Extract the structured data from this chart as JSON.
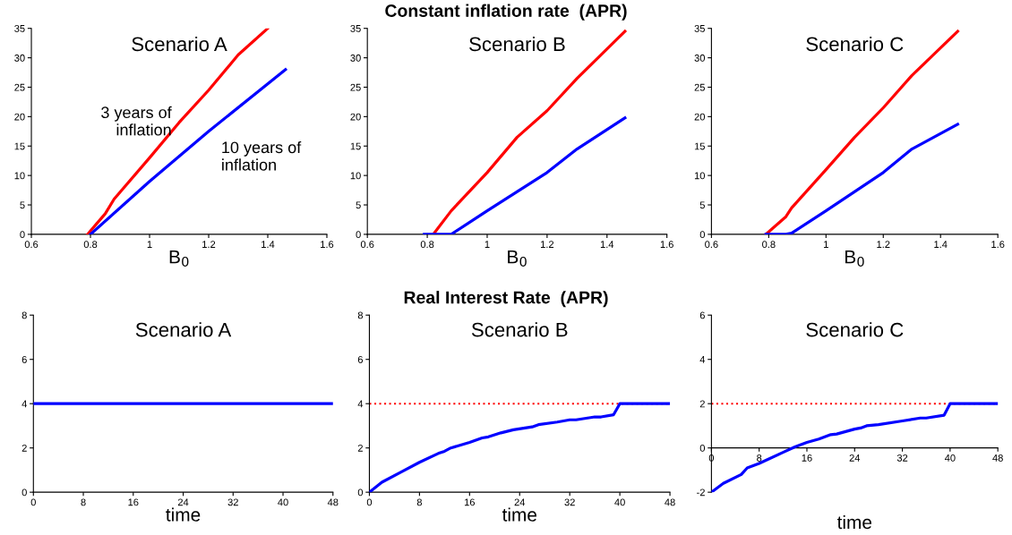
{
  "chart_data": [
    {
      "type": "line",
      "title": "Scenario A",
      "xlabel": "B$_{0}$",
      "annotations": [
        "Constant inflation rate  (APR)"
      ],
      "xlim": [
        0.6,
        1.6
      ],
      "xticks": [
        0.6,
        0.8,
        1,
        1.2,
        1.4,
        1.6
      ],
      "ylim": [
        0,
        35
      ],
      "yticks": [
        0,
        5,
        10,
        15,
        20,
        25,
        30,
        35
      ],
      "grid": false,
      "legend": false,
      "line_style": "solid",
      "series": [
        {
          "name": "3 years of\ninflation",
          "color": "#ff0000",
          "x": [
            0.79,
            0.85,
            0.88,
            1.0,
            1.1,
            1.2,
            1.3,
            1.4
          ],
          "values": [
            0,
            3.5,
            6,
            13,
            19,
            24.5,
            30.5,
            35
          ]
        },
        {
          "name": "10 years of\ninflation",
          "color": "#0000ff",
          "x": [
            0.8,
            1.0,
            1.2,
            1.46
          ],
          "values": [
            0,
            9,
            17.5,
            28
          ]
        }
      ]
    },
    {
      "type": "line",
      "title": "Scenario B",
      "xlabel": "B$_{0}$",
      "xlim": [
        0.6,
        1.6
      ],
      "xticks": [
        0.6,
        0.8,
        1,
        1.2,
        1.4,
        1.6
      ],
      "ylim": [
        0,
        35
      ],
      "yticks": [
        0,
        5,
        10,
        15,
        20,
        25,
        30,
        35
      ],
      "grid": false,
      "legend": false,
      "line_style": "solid",
      "series": [
        {
          "color": "#ff0000",
          "x": [
            0.82,
            0.88,
            1.0,
            1.1,
            1.2,
            1.3,
            1.46
          ],
          "values": [
            0,
            4,
            10.5,
            16.5,
            21,
            26.5,
            34.5
          ]
        },
        {
          "color": "#0000ff",
          "x": [
            0.79,
            0.88,
            1.0,
            1.2,
            1.3,
            1.46
          ],
          "values": [
            0,
            0,
            4,
            10.5,
            14.5,
            19.8
          ]
        }
      ]
    },
    {
      "type": "line",
      "title": "Scenario C",
      "xlabel": "B$_{0}$",
      "xlim": [
        0.6,
        1.6
      ],
      "xticks": [
        0.6,
        0.8,
        1,
        1.2,
        1.4,
        1.6
      ],
      "ylim": [
        0,
        35
      ],
      "yticks": [
        0,
        5,
        10,
        15,
        20,
        25,
        30,
        35
      ],
      "grid": false,
      "legend": false,
      "line_style": "solid",
      "series": [
        {
          "color": "#ff0000",
          "x": [
            0.79,
            0.86,
            0.88,
            1.0,
            1.1,
            1.2,
            1.3,
            1.46
          ],
          "values": [
            0,
            3,
            4.5,
            11,
            16.5,
            21.5,
            27,
            34.5
          ]
        },
        {
          "color": "#0000ff",
          "x": [
            0.79,
            0.86,
            0.88,
            1.0,
            1.2,
            1.3,
            1.46
          ],
          "values": [
            0,
            0,
            0.2,
            4,
            10.5,
            14.5,
            18.7
          ]
        }
      ]
    },
    {
      "type": "line",
      "title": "Scenario A",
      "xlabel": "time",
      "annotations": [
        "Real Interest Rate  (APR)"
      ],
      "xlim": [
        0,
        48
      ],
      "xticks": [
        0,
        8,
        16,
        24,
        32,
        40,
        48
      ],
      "ylim": [
        0,
        8
      ],
      "yticks": [
        0,
        2,
        4,
        6,
        8
      ],
      "grid": false,
      "legend": false,
      "line_style": "solid",
      "series": [
        {
          "color": "#0000ff",
          "x": [
            0,
            48
          ],
          "values": [
            4,
            4
          ]
        }
      ]
    },
    {
      "type": "line",
      "title": "Scenario B",
      "xlabel": "time",
      "xlim": [
        0,
        48
      ],
      "xticks": [
        0,
        8,
        16,
        24,
        32,
        40,
        48
      ],
      "ylim": [
        0,
        8
      ],
      "yticks": [
        0,
        2,
        4,
        6,
        8
      ],
      "grid": false,
      "legend": false,
      "line_style": "solid",
      "ref_lines": [
        {
          "axis": "y",
          "value": 4,
          "color": "#ff0000",
          "line_style": "dotted"
        }
      ],
      "series": [
        {
          "color": "#0000ff",
          "x": [
            0,
            2,
            5,
            8,
            11,
            12,
            13,
            16,
            18,
            19,
            21,
            23,
            26,
            27,
            30,
            32,
            33,
            36,
            37,
            39,
            40,
            48
          ],
          "values": [
            0,
            0.45,
            0.9,
            1.35,
            1.75,
            1.85,
            2.0,
            2.25,
            2.45,
            2.5,
            2.68,
            2.82,
            2.95,
            3.05,
            3.17,
            3.27,
            3.27,
            3.4,
            3.4,
            3.5,
            4.0,
            4.0
          ]
        }
      ]
    },
    {
      "type": "line",
      "title": "Scenario C",
      "xlabel": "time",
      "xlim": [
        0,
        48
      ],
      "xticks": [
        0,
        8,
        16,
        24,
        32,
        40,
        48
      ],
      "ylim": [
        -2,
        6
      ],
      "yticks": [
        -2,
        0,
        2,
        4,
        6
      ],
      "grid": false,
      "legend": false,
      "line_style": "solid",
      "ref_lines": [
        {
          "axis": "y",
          "value": 2,
          "color": "#ff0000",
          "line_style": "dotted"
        }
      ],
      "series": [
        {
          "color": "#0000ff",
          "x": [
            0,
            2,
            5,
            6,
            8,
            12,
            14,
            16,
            18,
            20,
            21,
            24,
            25,
            26,
            28,
            32,
            35,
            36,
            39,
            40,
            48
          ],
          "values": [
            -2,
            -1.6,
            -1.2,
            -0.9,
            -0.7,
            -0.2,
            0.05,
            0.25,
            0.4,
            0.6,
            0.63,
            0.85,
            0.9,
            1.0,
            1.05,
            1.22,
            1.35,
            1.35,
            1.48,
            2.0,
            2.0
          ]
        }
      ]
    }
  ]
}
